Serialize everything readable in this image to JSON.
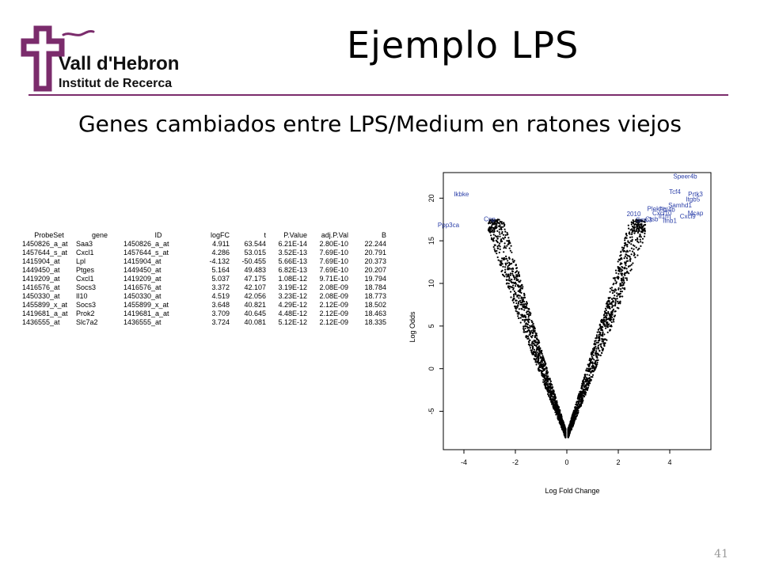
{
  "header": {
    "logo_line1": "Vall d'Hebron",
    "logo_line2": "Institut de Recerca",
    "title": "Ejemplo LPS",
    "brand_color": "#7b2c6c"
  },
  "subtitle": "Genes cambiados entre LPS/Medium en ratones viejos",
  "table": {
    "columns": [
      "ProbeSet",
      "gene",
      "ID",
      "logFC",
      "t",
      "P.Value",
      "adj.P.Val",
      "B"
    ],
    "rows": [
      [
        "1450826_a_at",
        "Saa3",
        "1450826_a_at",
        "4.911",
        "63.544",
        "6.21E-14",
        "2.80E-10",
        "22.244"
      ],
      [
        "1457644_s_at",
        "Cxcl1",
        "1457644_s_at",
        "4.286",
        "53.015",
        "3.52E-13",
        "7.69E-10",
        "20.791"
      ],
      [
        "1415904_at",
        "Lpl",
        "1415904_at",
        "-4.132",
        "-50.455",
        "5.66E-13",
        "7.69E-10",
        "20.373"
      ],
      [
        "1449450_at",
        "Ptges",
        "1449450_at",
        "5.164",
        "49.483",
        "6.82E-13",
        "7.69E-10",
        "20.207"
      ],
      [
        "1419209_at",
        "Cxcl1",
        "1419209_at",
        "5.037",
        "47.175",
        "1.08E-12",
        "9.71E-10",
        "19.794"
      ],
      [
        "1416576_at",
        "Socs3",
        "1416576_at",
        "3.372",
        "42.107",
        "3.19E-12",
        "2.08E-09",
        "18.784"
      ],
      [
        "1450330_at",
        "Il10",
        "1450330_at",
        "4.519",
        "42.056",
        "3.23E-12",
        "2.08E-09",
        "18.773"
      ],
      [
        "1455899_x_at",
        "Socs3",
        "1455899_x_at",
        "3.648",
        "40.821",
        "4.29E-12",
        "2.12E-09",
        "18.502"
      ],
      [
        "1419681_a_at",
        "Prok2",
        "1419681_a_at",
        "3.709",
        "40.645",
        "4.48E-12",
        "2.12E-09",
        "18.463"
      ],
      [
        "1436555_at",
        "Slc7a2",
        "1436555_at",
        "3.724",
        "40.081",
        "5.12E-12",
        "2.12E-09",
        "18.335"
      ]
    ]
  },
  "chart_data": {
    "type": "scatter",
    "title": "",
    "xlabel": "Log Fold Change",
    "ylabel": "Log Odds",
    "xlim": [
      -4.8,
      5.6
    ],
    "ylim": [
      -9.5,
      23
    ],
    "xticks": [
      -4,
      -2,
      0,
      2,
      4
    ],
    "yticks": [
      -5,
      0,
      5,
      10,
      15,
      20
    ],
    "point_color": "#000000",
    "label_color": "#2b3fa8",
    "grid": false,
    "labeled_points": [
      {
        "label": "Speer4b",
        "x": 4.6,
        "y": 22.3
      },
      {
        "label": "Tcf4",
        "x": 4.2,
        "y": 20.5
      },
      {
        "label": "Prtk3",
        "x": 5.0,
        "y": 20.2
      },
      {
        "label": "Ikbke",
        "x": -4.1,
        "y": 20.2
      },
      {
        "label": "Itgb5",
        "x": 4.9,
        "y": 19.6
      },
      {
        "label": "Samhd1",
        "x": 4.4,
        "y": 18.9
      },
      {
        "label": "Plekhg",
        "x": 3.5,
        "y": 18.5
      },
      {
        "label": "Fhl4b",
        "x": 3.9,
        "y": 18.4
      },
      {
        "label": "Cxcl10",
        "x": 3.7,
        "y": 18.0
      },
      {
        "label": "Mcap",
        "x": 5.0,
        "y": 18.0
      },
      {
        "label": "2010",
        "x": 2.6,
        "y": 17.9
      },
      {
        "label": "Il1rn",
        "x": 3.8,
        "y": 17.6
      },
      {
        "label": "Cxcl9",
        "x": 4.7,
        "y": 17.6
      },
      {
        "label": "Ctsb",
        "x": 3.3,
        "y": 17.3
      },
      {
        "label": "Smc3",
        "x": 3.0,
        "y": 17.2
      },
      {
        "label": "Ifnb1",
        "x": 4.0,
        "y": 17.1
      },
      {
        "label": "Cnp",
        "x": -3.0,
        "y": 17.3
      },
      {
        "label": "Ppp3ca",
        "x": -4.6,
        "y": 16.6
      }
    ]
  }
}
